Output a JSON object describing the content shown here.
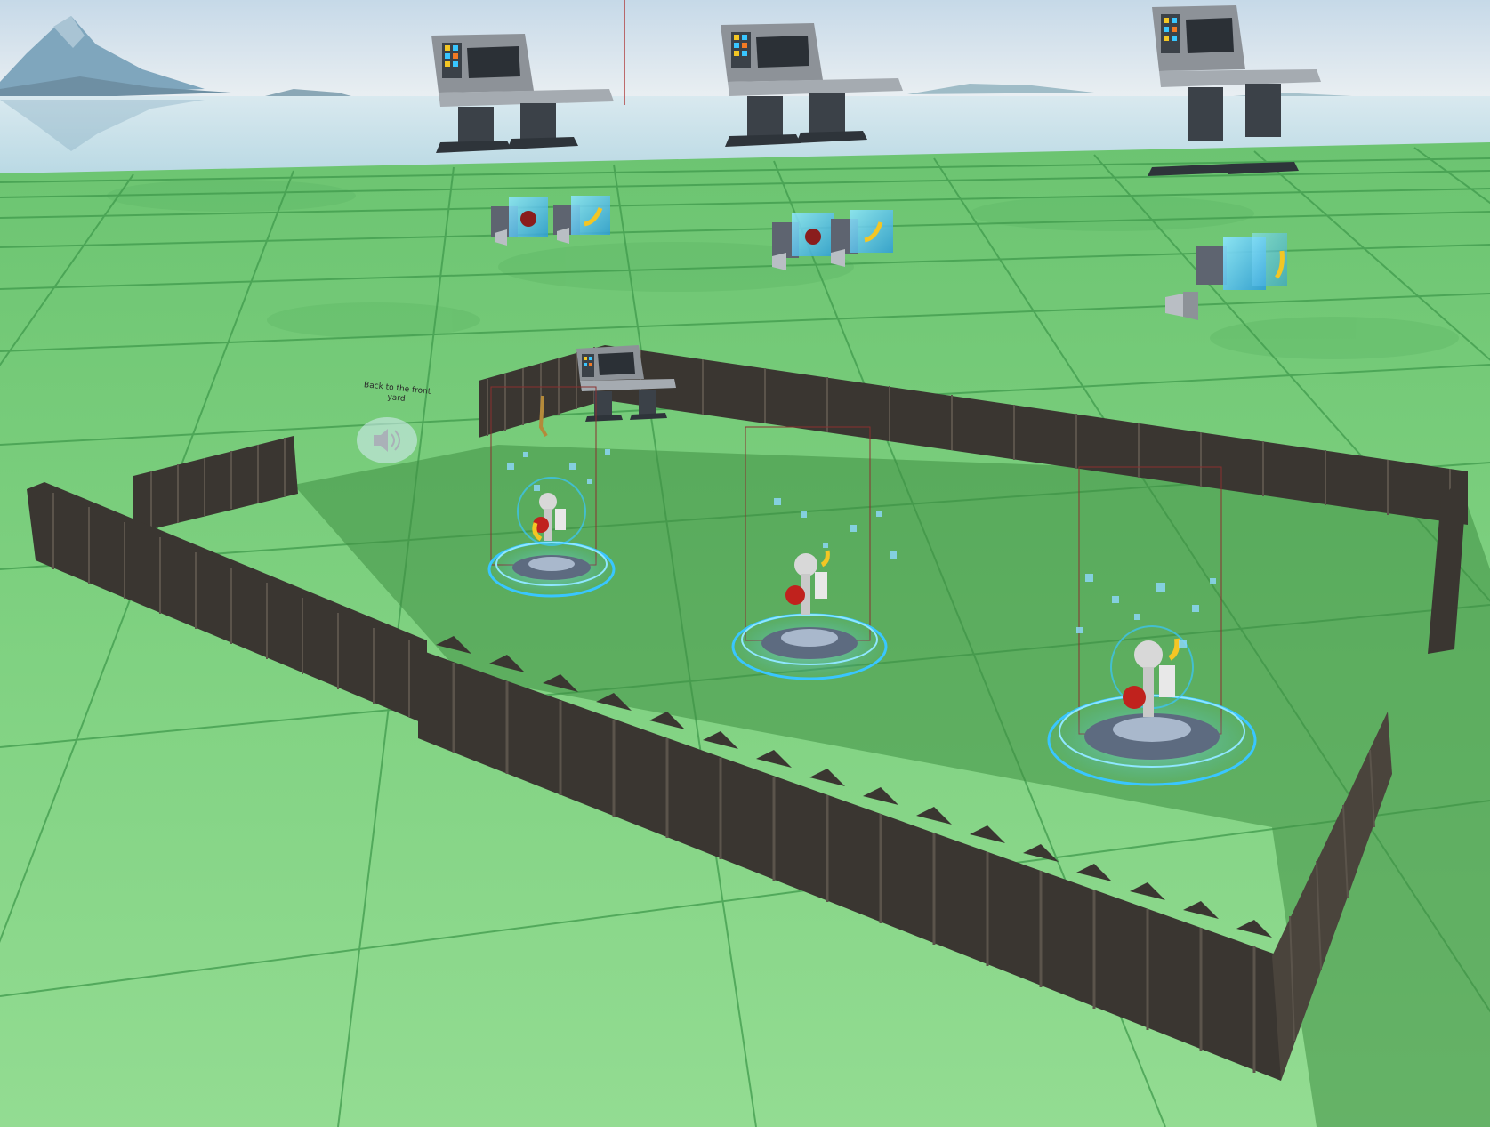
{
  "scene": {
    "floating_label": "Back to the front yard",
    "colors": {
      "sky_top": "#c9dbe9",
      "sky_horizon": "#e8eef2",
      "water": "#c2dfe8",
      "ground_near": "#8fd88c",
      "ground_far": "#6ec873",
      "grid_line": "#3f9a4c",
      "fence": "#3a3631",
      "fence_highlight": "#5b544b",
      "console_body": "#8d9298",
      "console_dark": "#3b4148",
      "pad_ring": "#39c6ff",
      "pad_base": "#5d6b80",
      "fruit_red": "#c0221d",
      "fruit_yellow": "#f3c624",
      "mountain": "#7fa6bd"
    },
    "objects": {
      "consoles": [
        "console",
        "console",
        "console",
        "console"
      ],
      "spawn_pads": [
        "spawn-pad",
        "spawn-pad",
        "spawn-pad"
      ],
      "device_groups": [
        "device-group",
        "device-group",
        "device-group"
      ],
      "speaker_icon": "speaker-icon"
    }
  }
}
